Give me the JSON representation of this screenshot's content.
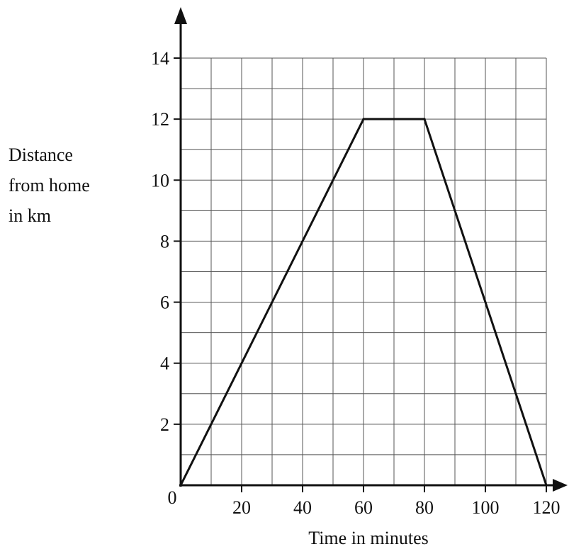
{
  "chart_data": {
    "type": "line",
    "xlabel": "Time in minutes",
    "ylabel_lines": [
      "Distance",
      "from home",
      "in km"
    ],
    "origin_label": "0",
    "xlim": [
      0,
      120
    ],
    "ylim": [
      0,
      14
    ],
    "x_major_ticks": [
      20,
      40,
      60,
      80,
      100,
      120
    ],
    "y_major_ticks": [
      2,
      4,
      6,
      8,
      10,
      12,
      14
    ],
    "x_minor_step": 10,
    "y_minor_step": 1,
    "grid": true,
    "series": [
      {
        "x": [
          0,
          60,
          80,
          120
        ],
        "y": [
          0,
          12,
          12,
          0
        ],
        "color": "#111111"
      }
    ]
  }
}
